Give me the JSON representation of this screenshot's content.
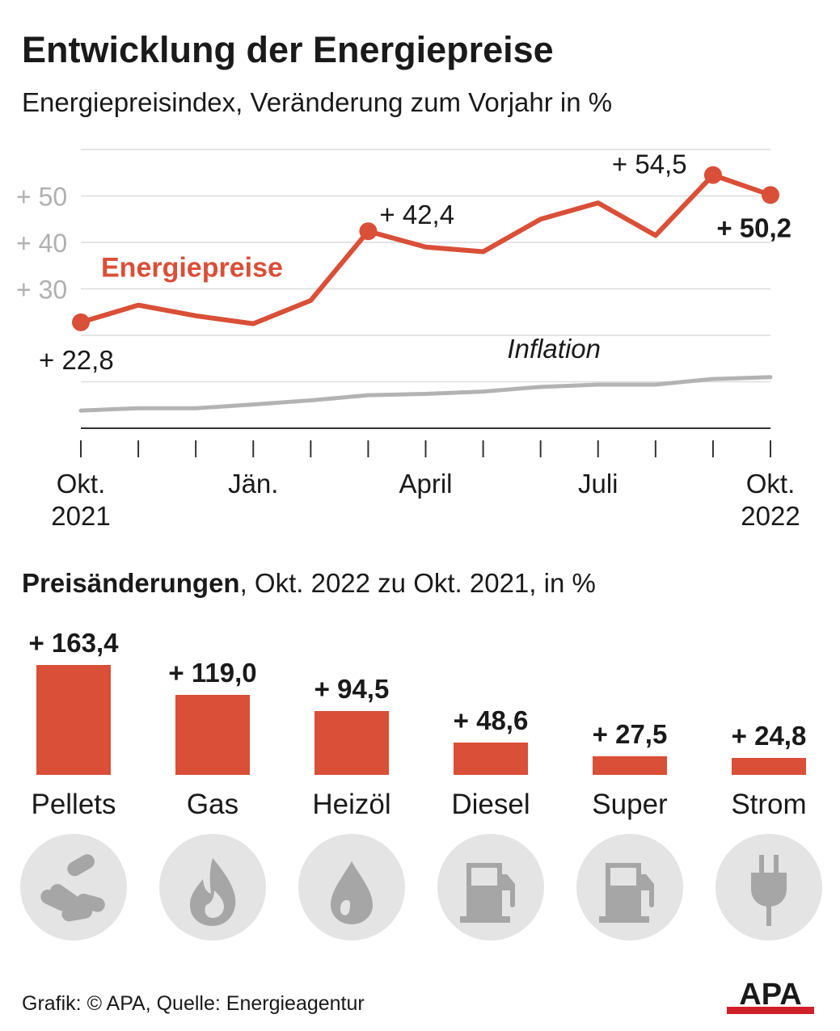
{
  "title": "Entwicklung der Energiepreise",
  "subtitle": "Energiepreisindex, Veränderung zum Vorjahr in %",
  "colors": {
    "energy": "#d94f37",
    "inflation": "#b3b3b3",
    "grid": "#dcdcdc",
    "icon_bg": "#e4e4e4",
    "icon_fg": "#a6a6a6"
  },
  "chart_data": {
    "type": "line",
    "x": [
      "Okt. 2021",
      "Nov. 2021",
      "Dez. 2021",
      "Jän. 2022",
      "Feb. 2022",
      "März 2022",
      "April 2022",
      "Mai 2022",
      "Juni 2022",
      "Juli 2022",
      "Aug. 2022",
      "Sept. 2022",
      "Okt. 2022"
    ],
    "x_tick_labels": [
      {
        "index": 0,
        "lines": [
          "Okt.",
          "2021"
        ]
      },
      {
        "index": 3,
        "lines": [
          "Jän."
        ]
      },
      {
        "index": 6,
        "lines": [
          "April"
        ]
      },
      {
        "index": 9,
        "lines": [
          "Juli"
        ]
      },
      {
        "index": 12,
        "lines": [
          "Okt.",
          "2022"
        ]
      }
    ],
    "y_ticks": [
      {
        "value": 50,
        "label": "+ 50"
      },
      {
        "value": 40,
        "label": "+ 40"
      },
      {
        "value": 30,
        "label": "+ 30"
      }
    ],
    "ylim": [
      0,
      60
    ],
    "grid": true,
    "series": [
      {
        "name": "Energiepreise",
        "values": [
          22.8,
          26.5,
          24.2,
          22.5,
          27.5,
          42.4,
          39.0,
          38.0,
          45.0,
          48.5,
          41.5,
          54.5,
          50.2
        ]
      },
      {
        "name": "Inflation",
        "values": [
          3.8,
          4.3,
          4.3,
          5.1,
          6.0,
          7.1,
          7.4,
          7.9,
          8.9,
          9.4,
          9.4,
          10.6,
          11.0
        ]
      }
    ],
    "annotations": [
      {
        "series": 0,
        "index": 0,
        "label": "+ 22,8"
      },
      {
        "series": 0,
        "index": 5,
        "label": "+ 42,4"
      },
      {
        "series": 0,
        "index": 11,
        "label": "+ 54,5"
      },
      {
        "series": 0,
        "index": 12,
        "label": "+ 50,2"
      }
    ]
  },
  "bars_section": {
    "title_bold": "Preisänderungen",
    "title_rest": ", Okt. 2022 zu Okt. 2021, in %",
    "chart_data": {
      "type": "bar",
      "categories": [
        "Pellets",
        "Gas",
        "Heizöl",
        "Diesel",
        "Super",
        "Strom"
      ],
      "values": [
        163.4,
        119.0,
        94.5,
        48.6,
        27.5,
        24.8
      ],
      "value_labels": [
        "+ 163,4",
        "+ 119,0",
        "+ 94,5",
        "+ 48,6",
        "+ 27,5",
        "+ 24,8"
      ],
      "icons": [
        "pellets-icon",
        "flame-icon",
        "oil-drop-icon",
        "fuel-pump-icon",
        "fuel-pump-icon",
        "plug-icon"
      ]
    }
  },
  "footer": "Grafik: © APA, Quelle: Energieagentur",
  "logo_text": "APA"
}
